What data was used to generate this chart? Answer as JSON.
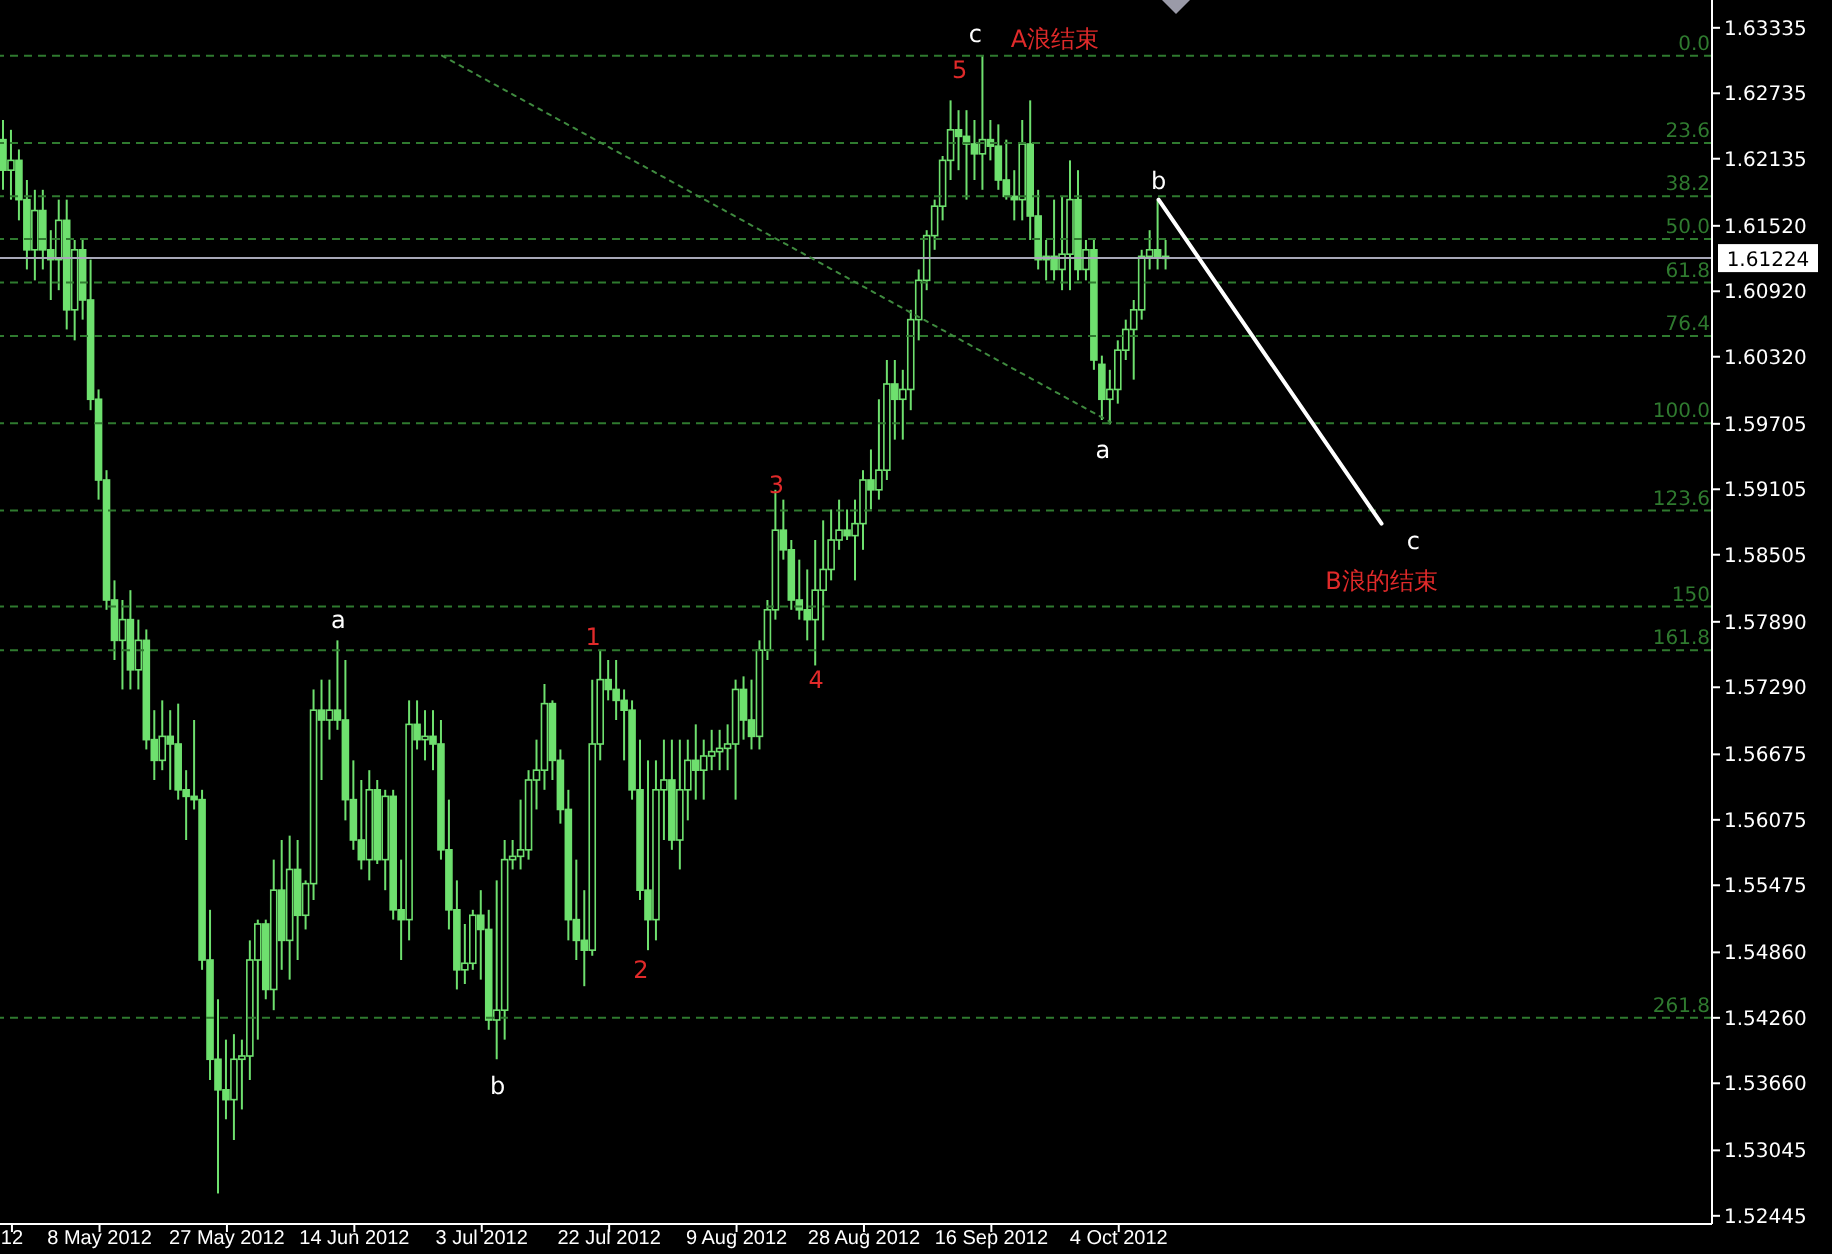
{
  "chart_data": {
    "type": "candlestick",
    "color": "#6ee06e",
    "categories": [
      null,
      "12",
      null,
      null,
      null,
      null,
      null,
      null,
      null,
      null,
      null,
      null,
      "8 May 2012",
      null,
      null,
      null,
      null,
      null,
      null,
      null,
      null,
      null,
      null,
      null,
      null,
      null,
      null,
      null,
      "27 May 2012",
      null,
      null,
      null,
      null,
      null,
      null,
      null,
      null,
      null,
      null,
      null,
      null,
      null,
      null,
      null,
      "14 Jun 2012",
      null,
      null,
      null,
      null,
      null,
      null,
      null,
      null,
      null,
      null,
      null,
      null,
      null,
      null,
      null,
      "3 Jul 2012",
      null,
      null,
      null,
      null,
      null,
      null,
      null,
      null,
      null,
      null,
      null,
      null,
      null,
      null,
      null,
      "22 Jul 2012",
      null,
      null,
      null,
      null,
      null,
      null,
      null,
      null,
      null,
      null,
      null,
      null,
      null,
      null,
      null,
      "9 Aug 2012",
      null,
      null,
      null,
      null,
      null,
      null,
      null,
      null,
      null,
      null,
      null,
      null,
      null,
      null,
      null,
      "28 Aug 2012",
      null,
      null,
      null,
      null,
      null,
      null,
      null,
      null,
      null,
      null,
      null,
      null,
      null,
      null,
      null,
      "16 Sep 2012",
      null,
      null,
      null,
      null,
      null,
      null,
      null,
      null,
      null,
      null,
      null,
      null,
      null,
      null,
      null,
      "4 Oct 2012",
      null,
      null,
      null,
      null,
      null,
      null,
      null,
      null,
      null,
      null,
      null,
      null,
      null,
      null,
      null,
      null,
      null,
      null,
      null,
      null,
      null,
      null,
      null,
      null,
      null,
      null,
      null,
      null,
      null,
      null,
      null,
      null,
      null,
      null,
      null,
      null,
      null,
      null,
      null,
      null,
      null,
      null,
      null,
      null,
      null,
      null,
      null,
      null,
      null,
      null,
      null,
      null,
      null,
      null,
      null,
      null,
      null,
      null,
      null,
      null,
      null,
      null,
      null,
      null,
      null,
      null,
      null,
      null,
      null,
      null,
      null,
      null,
      null,
      null
    ],
    "ohlc": [
      [
        1.6231,
        1.6249,
        1.6185,
        1.6203
      ],
      [
        1.6203,
        1.624,
        1.6176,
        1.6212
      ],
      [
        1.6212,
        1.6222,
        1.6157,
        1.6176
      ],
      [
        1.6176,
        1.6194,
        1.6112,
        1.613
      ],
      [
        1.613,
        1.6185,
        1.6102,
        1.6166
      ],
      [
        1.6166,
        1.6185,
        1.6112,
        1.613
      ],
      [
        1.613,
        1.6148,
        1.6084,
        1.6121
      ],
      [
        1.6121,
        1.6176,
        1.6093,
        1.6157
      ],
      [
        1.6157,
        1.6176,
        1.6057,
        1.6075
      ],
      [
        1.6075,
        1.6139,
        1.6047,
        1.613
      ],
      [
        1.613,
        1.6139,
        1.6066,
        1.6084
      ],
      [
        1.6084,
        1.6121,
        1.5983,
        1.5993
      ],
      [
        1.5993,
        1.6002,
        1.5901,
        1.5919
      ],
      [
        1.5919,
        1.5928,
        1.58,
        1.5809
      ],
      [
        1.5809,
        1.5827,
        1.5754,
        1.5772
      ],
      [
        1.5772,
        1.5809,
        1.5727,
        1.5791
      ],
      [
        1.5791,
        1.5818,
        1.5727,
        1.5745
      ],
      [
        1.5745,
        1.5791,
        1.5727,
        1.5772
      ],
      [
        1.5772,
        1.5782,
        1.5672,
        1.5681
      ],
      [
        1.5681,
        1.5708,
        1.5644,
        1.5662
      ],
      [
        1.5662,
        1.5717,
        1.5653,
        1.5684
      ],
      [
        1.5684,
        1.5708,
        1.5635,
        1.5677
      ],
      [
        1.5677,
        1.5714,
        1.5626,
        1.5635
      ],
      [
        1.5635,
        1.5653,
        1.5589,
        1.5629
      ],
      [
        1.5629,
        1.5699,
        1.5617,
        1.5626
      ],
      [
        1.5626,
        1.5635,
        1.547,
        1.5479
      ],
      [
        1.5479,
        1.5525,
        1.5369,
        1.5388
      ],
      [
        1.5388,
        1.5443,
        1.5265,
        1.536
      ],
      [
        1.536,
        1.5406,
        1.5333,
        1.5351
      ],
      [
        1.5351,
        1.5411,
        1.5314,
        1.5388
      ],
      [
        1.5388,
        1.5406,
        1.5342,
        1.5391
      ],
      [
        1.5391,
        1.5497,
        1.5369,
        1.5479
      ],
      [
        1.5479,
        1.5516,
        1.5406,
        1.5512
      ],
      [
        1.5512,
        1.5516,
        1.5443,
        1.5452
      ],
      [
        1.5452,
        1.5571,
        1.5433,
        1.5543
      ],
      [
        1.5543,
        1.5589,
        1.547,
        1.5497
      ],
      [
        1.5497,
        1.5593,
        1.5461,
        1.5562
      ],
      [
        1.5562,
        1.5589,
        1.5479,
        1.552
      ],
      [
        1.552,
        1.5552,
        1.5507,
        1.5549
      ],
      [
        1.5549,
        1.5727,
        1.5534,
        1.5708
      ],
      [
        1.5708,
        1.5736,
        1.5644,
        1.5699
      ],
      [
        1.5699,
        1.5736,
        1.5681,
        1.5708
      ],
      [
        1.5708,
        1.5772,
        1.569,
        1.5699
      ],
      [
        1.5699,
        1.5754,
        1.5607,
        1.5626
      ],
      [
        1.5626,
        1.5662,
        1.558,
        1.5589
      ],
      [
        1.5589,
        1.5644,
        1.5562,
        1.5571
      ],
      [
        1.5571,
        1.5653,
        1.5552,
        1.5635
      ],
      [
        1.5635,
        1.5644,
        1.5567,
        1.5571
      ],
      [
        1.5571,
        1.5635,
        1.5543,
        1.5629
      ],
      [
        1.5629,
        1.5635,
        1.5516,
        1.5525
      ],
      [
        1.5525,
        1.5571,
        1.5479,
        1.5516
      ],
      [
        1.5516,
        1.5717,
        1.5497,
        1.5695
      ],
      [
        1.5695,
        1.5717,
        1.5672,
        1.5681
      ],
      [
        1.5681,
        1.5708,
        1.5662,
        1.5684
      ],
      [
        1.5684,
        1.5708,
        1.5653,
        1.5677
      ],
      [
        1.5677,
        1.5699,
        1.5571,
        1.558
      ],
      [
        1.558,
        1.5626,
        1.5507,
        1.5525
      ],
      [
        1.5525,
        1.5552,
        1.5452,
        1.547
      ],
      [
        1.547,
        1.5512,
        1.5457,
        1.5476
      ],
      [
        1.5476,
        1.5525,
        1.547,
        1.552
      ],
      [
        1.552,
        1.5543,
        1.5461,
        1.5507
      ],
      [
        1.5507,
        1.5525,
        1.5415,
        1.5424
      ],
      [
        1.5424,
        1.5552,
        1.5388,
        1.5433
      ],
      [
        1.5433,
        1.5589,
        1.5406,
        1.5571
      ],
      [
        1.5571,
        1.5589,
        1.5562,
        1.5574
      ],
      [
        1.5574,
        1.5626,
        1.5562,
        1.558
      ],
      [
        1.558,
        1.5653,
        1.5571,
        1.5644
      ],
      [
        1.5644,
        1.5681,
        1.5617,
        1.5653
      ],
      [
        1.5653,
        1.5732,
        1.5635,
        1.5714
      ],
      [
        1.5714,
        1.5717,
        1.5644,
        1.5662
      ],
      [
        1.5662,
        1.5672,
        1.5604,
        1.5617
      ],
      [
        1.5617,
        1.5635,
        1.5497,
        1.5516
      ],
      [
        1.5516,
        1.5571,
        1.5479,
        1.5497
      ],
      [
        1.5497,
        1.5543,
        1.5455,
        1.5488
      ],
      [
        1.5488,
        1.5736,
        1.5483,
        1.5677
      ],
      [
        1.5677,
        1.5763,
        1.5662,
        1.5736
      ],
      [
        1.5736,
        1.5754,
        1.5717,
        1.5727
      ],
      [
        1.5727,
        1.5754,
        1.5699,
        1.5717
      ],
      [
        1.5717,
        1.5727,
        1.5662,
        1.5708
      ],
      [
        1.5708,
        1.5717,
        1.5626,
        1.5635
      ],
      [
        1.5635,
        1.5681,
        1.5534,
        1.5543
      ],
      [
        1.5543,
        1.5662,
        1.5488,
        1.5516
      ],
      [
        1.5516,
        1.5662,
        1.5497,
        1.5635
      ],
      [
        1.5635,
        1.5681,
        1.5589,
        1.5644
      ],
      [
        1.5644,
        1.5681,
        1.558,
        1.5589
      ],
      [
        1.5589,
        1.5681,
        1.5562,
        1.5635
      ],
      [
        1.5635,
        1.5681,
        1.5607,
        1.5662
      ],
      [
        1.5662,
        1.5695,
        1.5626,
        1.5653
      ],
      [
        1.5653,
        1.5681,
        1.5626,
        1.5666
      ],
      [
        1.5666,
        1.569,
        1.5653,
        1.567
      ],
      [
        1.567,
        1.569,
        1.5653,
        1.5673
      ],
      [
        1.5673,
        1.5695,
        1.5653,
        1.5677
      ],
      [
        1.5677,
        1.5736,
        1.5626,
        1.5727
      ],
      [
        1.5727,
        1.5739,
        1.5681,
        1.5699
      ],
      [
        1.5699,
        1.5736,
        1.5672,
        1.5684
      ],
      [
        1.5684,
        1.5772,
        1.5672,
        1.5763
      ],
      [
        1.5763,
        1.5809,
        1.5754,
        1.58
      ],
      [
        1.58,
        1.591,
        1.5791,
        1.5873
      ],
      [
        1.5873,
        1.5901,
        1.5846,
        1.5855
      ],
      [
        1.5855,
        1.5864,
        1.58,
        1.5809
      ],
      [
        1.5809,
        1.5846,
        1.5791,
        1.58
      ],
      [
        1.58,
        1.5837,
        1.5772,
        1.5791
      ],
      [
        1.5791,
        1.5864,
        1.5749,
        1.5818
      ],
      [
        1.5818,
        1.5882,
        1.5772,
        1.5837
      ],
      [
        1.5837,
        1.5892,
        1.5827,
        1.5864
      ],
      [
        1.5864,
        1.5901,
        1.5855,
        1.5873
      ],
      [
        1.5873,
        1.5892,
        1.5864,
        1.5868
      ],
      [
        1.5868,
        1.5901,
        1.5827,
        1.5879
      ],
      [
        1.5879,
        1.5928,
        1.5855,
        1.5919
      ],
      [
        1.5919,
        1.5947,
        1.5892,
        1.591
      ],
      [
        1.591,
        1.5993,
        1.5901,
        1.5928
      ],
      [
        1.5928,
        1.6029,
        1.5919,
        1.6007
      ],
      [
        1.6007,
        1.6029,
        1.5956,
        1.5993
      ],
      [
        1.5993,
        1.602,
        1.5956,
        1.6002
      ],
      [
        1.6002,
        1.6075,
        1.5983,
        1.6066
      ],
      [
        1.6066,
        1.6112,
        1.6047,
        1.6102
      ],
      [
        1.6102,
        1.6148,
        1.6093,
        1.6143
      ],
      [
        1.6143,
        1.6176,
        1.613,
        1.617
      ],
      [
        1.617,
        1.6216,
        1.6157,
        1.6212
      ],
      [
        1.6212,
        1.6267,
        1.6194,
        1.624
      ],
      [
        1.624,
        1.6258,
        1.6203,
        1.6234
      ],
      [
        1.6234,
        1.6258,
        1.6176,
        1.6227
      ],
      [
        1.6227,
        1.6249,
        1.6194,
        1.6218
      ],
      [
        1.6218,
        1.6308,
        1.6185,
        1.6231
      ],
      [
        1.6231,
        1.6249,
        1.6212,
        1.6225
      ],
      [
        1.6225,
        1.6245,
        1.6185,
        1.6194
      ],
      [
        1.6194,
        1.6231,
        1.6176,
        1.6179
      ],
      [
        1.6179,
        1.6203,
        1.6157,
        1.6176
      ],
      [
        1.6176,
        1.6249,
        1.6157,
        1.6227
      ],
      [
        1.6227,
        1.6267,
        1.6139,
        1.6161
      ],
      [
        1.6161,
        1.6185,
        1.6112,
        1.6121
      ],
      [
        1.6121,
        1.6139,
        1.6102,
        1.6124
      ],
      [
        1.6124,
        1.6176,
        1.6102,
        1.6112
      ],
      [
        1.6112,
        1.6179,
        1.6093,
        1.6126
      ],
      [
        1.6126,
        1.6212,
        1.6093,
        1.6176
      ],
      [
        1.6176,
        1.6203,
        1.6102,
        1.6112
      ],
      [
        1.6112,
        1.6139,
        1.6102,
        1.613
      ],
      [
        1.613,
        1.6139,
        1.602,
        1.6029
      ],
      [
        1.6025,
        1.6033,
        1.5974,
        1.5993
      ],
      [
        1.5993,
        1.602,
        1.597,
        1.6002
      ],
      [
        1.6002,
        1.6047,
        1.5989,
        1.6038
      ],
      [
        1.6038,
        1.6066,
        1.6029,
        1.6057
      ],
      [
        1.6057,
        1.6084,
        1.6011,
        1.6075
      ],
      [
        1.6075,
        1.613,
        1.6066,
        1.6124
      ],
      [
        1.6124,
        1.6148,
        1.6112,
        1.613
      ],
      [
        1.613,
        1.6176,
        1.6112,
        1.6124
      ],
      [
        1.6124,
        1.6139,
        1.6112,
        1.61224
      ],
      null,
      null,
      null,
      null,
      null,
      null,
      null,
      null,
      null,
      null,
      null,
      null,
      null,
      null,
      null,
      null,
      null,
      null,
      null,
      null,
      null,
      null,
      null,
      null,
      null,
      null,
      null,
      null,
      null,
      null,
      null,
      null,
      null,
      null,
      null,
      null,
      null,
      null,
      null,
      null,
      null,
      null,
      null,
      null,
      null,
      null,
      null,
      null,
      null,
      null,
      null,
      null,
      null,
      null,
      null,
      null,
      null,
      null,
      null,
      null,
      null,
      null,
      null,
      null,
      null,
      null,
      null,
      null
    ],
    "series": [
      {
        "type": "line",
        "color": "#3f8a3f",
        "line_style": "dotted",
        "values": [
          null,
          null,
          null,
          null,
          null,
          null,
          null,
          null,
          null,
          null,
          null,
          null,
          null,
          null,
          null,
          null,
          null,
          null,
          null,
          null,
          null,
          null,
          null,
          null,
          null,
          null,
          null,
          null,
          null,
          null,
          null,
          null,
          null,
          null,
          null,
          null,
          null,
          null,
          null,
          null,
          null,
          null,
          null,
          null,
          null,
          null,
          null,
          null,
          null,
          null,
          null,
          null,
          null,
          null,
          null,
          1.6308,
          null,
          null,
          null,
          null,
          null,
          null,
          null,
          null,
          null,
          null,
          null,
          null,
          null,
          null,
          null,
          null,
          null,
          null,
          null,
          null,
          null,
          null,
          null,
          null,
          null,
          null,
          null,
          null,
          null,
          null,
          null,
          null,
          null,
          null,
          null,
          null,
          null,
          null,
          null,
          null,
          null,
          null,
          null,
          null,
          null,
          null,
          null,
          null,
          null,
          null,
          null,
          null,
          null,
          null,
          null,
          null,
          null,
          null,
          null,
          null,
          null,
          null,
          null,
          null,
          null,
          null,
          null,
          null,
          null,
          null,
          null,
          null,
          null,
          null,
          null,
          null,
          null,
          null,
          null,
          null,
          null,
          null,
          null,
          1.5972,
          null,
          null,
          null,
          null,
          null,
          null,
          null,
          null,
          null,
          null,
          null,
          null,
          null,
          null,
          null,
          null,
          null,
          null,
          null,
          null,
          null,
          null,
          null,
          null,
          null,
          null,
          null,
          null,
          null,
          null,
          null,
          null,
          null,
          null,
          null,
          null,
          null,
          null,
          null,
          null,
          null,
          null,
          null,
          null,
          null,
          null,
          null,
          null,
          null,
          null,
          null,
          null,
          null,
          null,
          null,
          null,
          null,
          null,
          null,
          null,
          null,
          null,
          null,
          null,
          null,
          null,
          null,
          null,
          null,
          null,
          null,
          null,
          null,
          null,
          null
        ]
      },
      {
        "type": "line",
        "color": "#ffffff",
        "line_style": "solid",
        "values": [
          null,
          null,
          null,
          null,
          null,
          null,
          null,
          null,
          null,
          null,
          null,
          null,
          null,
          null,
          null,
          null,
          null,
          null,
          null,
          null,
          null,
          null,
          null,
          null,
          null,
          null,
          null,
          null,
          null,
          null,
          null,
          null,
          null,
          null,
          null,
          null,
          null,
          null,
          null,
          null,
          null,
          null,
          null,
          null,
          null,
          null,
          null,
          null,
          null,
          null,
          null,
          null,
          null,
          null,
          null,
          null,
          null,
          null,
          null,
          null,
          null,
          null,
          null,
          null,
          null,
          null,
          null,
          null,
          null,
          null,
          null,
          null,
          null,
          null,
          null,
          null,
          null,
          null,
          null,
          null,
          null,
          null,
          null,
          null,
          null,
          null,
          null,
          null,
          null,
          null,
          null,
          null,
          null,
          null,
          null,
          null,
          null,
          null,
          null,
          null,
          null,
          null,
          null,
          null,
          null,
          null,
          null,
          null,
          null,
          null,
          null,
          null,
          null,
          null,
          null,
          null,
          null,
          null,
          null,
          null,
          null,
          null,
          null,
          null,
          null,
          null,
          null,
          null,
          null,
          null,
          null,
          null,
          null,
          null,
          null,
          null,
          null,
          null,
          null,
          null,
          null,
          null,
          null,
          null,
          null,
          1.6176,
          null,
          null,
          null,
          null,
          null,
          null,
          null,
          null,
          null,
          null,
          null,
          null,
          null,
          null,
          null,
          null,
          null,
          null,
          null,
          null,
          null,
          null,
          null,
          null,
          null,
          null,
          null,
          1.5879,
          null,
          null,
          null,
          null,
          null,
          null,
          null,
          null,
          null,
          null,
          null,
          null,
          null,
          null,
          null,
          null,
          null,
          null,
          null,
          null,
          null,
          null,
          null,
          null,
          null,
          null,
          null,
          null,
          null,
          null,
          null,
          null,
          null,
          null,
          null,
          null,
          null,
          null,
          null,
          null,
          null
        ]
      }
    ],
    "ylim": [
      1.5237,
      1.6359
    ],
    "yticks": [
      {
        "value": 1.63335,
        "label": "1.63335"
      },
      {
        "value": 1.62735,
        "label": "1.62735"
      },
      {
        "value": 1.62135,
        "label": "1.62135"
      },
      {
        "value": 1.6152,
        "label": "1.61520"
      },
      {
        "value": 1.6092,
        "label": "1.60920"
      },
      {
        "value": 1.6032,
        "label": "1.60320"
      },
      {
        "value": 1.59705,
        "label": "1.59705"
      },
      {
        "value": 1.59105,
        "label": "1.59105"
      },
      {
        "value": 1.58505,
        "label": "1.58505"
      },
      {
        "value": 1.5789,
        "label": "1.57890"
      },
      {
        "value": 1.5729,
        "label": "1.57290"
      },
      {
        "value": 1.56675,
        "label": "1.56675"
      },
      {
        "value": 1.56075,
        "label": "1.56075"
      },
      {
        "value": 1.55475,
        "label": "1.55475"
      },
      {
        "value": 1.5486,
        "label": "1.54860"
      },
      {
        "value": 1.5426,
        "label": "1.54260"
      },
      {
        "value": 1.5366,
        "label": "1.53660"
      },
      {
        "value": 1.53045,
        "label": "1.53045"
      },
      {
        "value": 1.52445,
        "label": "1.52445"
      }
    ],
    "ref_lines": [
      {
        "axis": "y",
        "value": 1.61224,
        "label": "1.61224",
        "color": "#a8a8b8",
        "line_style": "solid"
      },
      {
        "axis": "y",
        "value": 1.6308,
        "color": "#2f7a2f",
        "line_style": "dashed"
      },
      {
        "axis": "y",
        "value": 1.6228,
        "color": "#2f7a2f",
        "line_style": "dashed"
      },
      {
        "axis": "y",
        "value": 1.6179,
        "color": "#2f7a2f",
        "line_style": "dashed"
      },
      {
        "axis": "y",
        "value": 1.614,
        "color": "#2f7a2f",
        "line_style": "dashed"
      },
      {
        "axis": "y",
        "value": 1.61,
        "color": "#2f7a2f",
        "line_style": "dashed"
      },
      {
        "axis": "y",
        "value": 1.6051,
        "color": "#2f7a2f",
        "line_style": "dashed"
      },
      {
        "axis": "y",
        "value": 1.5971,
        "color": "#2f7a2f",
        "line_style": "dashed"
      },
      {
        "axis": "y",
        "value": 1.5891,
        "color": "#2f7a2f",
        "line_style": "dashed"
      },
      {
        "axis": "y",
        "value": 1.5803,
        "color": "#2f7a2f",
        "line_style": "dashed"
      },
      {
        "axis": "y",
        "value": 1.5763,
        "color": "#2f7a2f",
        "line_style": "dashed"
      },
      {
        "axis": "y",
        "value": 1.5426,
        "color": "#2f7a2f",
        "line_style": "dashed"
      }
    ],
    "annotations": [
      "c",
      "A浪结束",
      "5",
      "b",
      "a",
      "c",
      "B浪的结束",
      "3",
      "4",
      "1",
      "2",
      "a",
      "b",
      {
        "text": "0.0",
        "y": 1.6308
      },
      {
        "text": "23.6",
        "y": 1.6228
      },
      {
        "text": "38.2",
        "y": 1.6179
      },
      {
        "text": "50.0",
        "y": 1.614
      },
      {
        "text": "61.8",
        "y": 1.61
      },
      {
        "text": "76.4",
        "y": 1.6051
      },
      {
        "text": "100.0",
        "y": 1.5971
      },
      {
        "text": "123.6",
        "y": 1.5891
      },
      {
        "text": "150",
        "y": 1.5803
      },
      {
        "text": "161.8",
        "y": 1.5763
      },
      {
        "text": "261.8",
        "y": 1.5426
      }
    ]
  }
}
